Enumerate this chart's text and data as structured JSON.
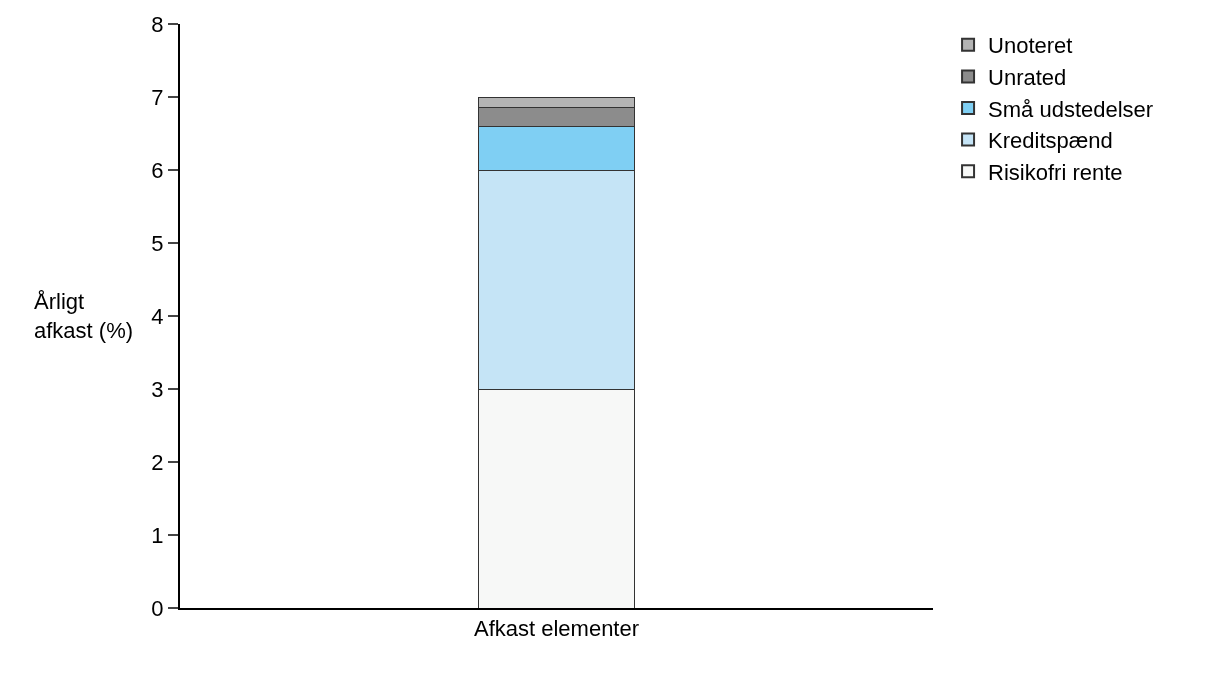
{
  "chart_data": {
    "type": "bar",
    "stacked": true,
    "categories": [
      "Afkast elementer"
    ],
    "ylabel": "Årligt\nafkast (%)",
    "ylim": [
      0,
      8
    ],
    "yticks": [
      0,
      1,
      2,
      3,
      4,
      5,
      6,
      7,
      8
    ],
    "legend": "right",
    "series": [
      {
        "name": "Risikofri rente",
        "color": "#f7f8f7",
        "values": [
          3
        ]
      },
      {
        "name": "Kreditspænd",
        "color": "#c5e4f6",
        "values": [
          3
        ]
      },
      {
        "name": "Små udstedelser",
        "color": "#7fcff3",
        "values": [
          0.6
        ]
      },
      {
        "name": "Unrated",
        "color": "#8c8c8c",
        "values": [
          0.25
        ]
      },
      {
        "name": "Unoteret",
        "color": "#b4b4b4",
        "values": [
          0.15
        ]
      }
    ]
  }
}
